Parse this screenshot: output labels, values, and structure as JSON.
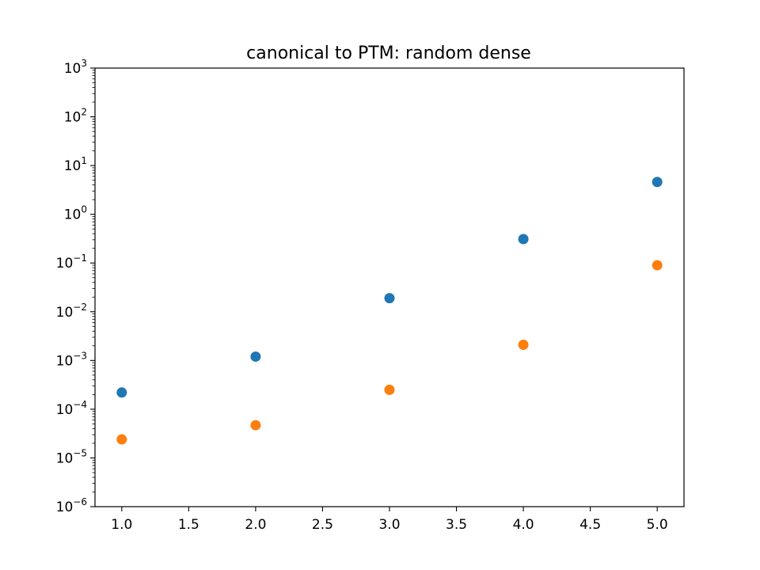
{
  "chart_data": {
    "type": "scatter",
    "title": "canonical to PTM: random dense",
    "xlabel": "",
    "ylabel": "",
    "xlim": [
      0.8,
      5.2
    ],
    "ylim": [
      1e-06,
      1000
    ],
    "yscale": "log",
    "grid": false,
    "x_ticks": [
      1.0,
      1.5,
      2.0,
      2.5,
      3.0,
      3.5,
      4.0,
      4.5,
      5.0
    ],
    "x_tick_labels": [
      "1.0",
      "1.5",
      "2.0",
      "2.5",
      "3.0",
      "3.5",
      "4.0",
      "4.5",
      "5.0"
    ],
    "y_ticks": [
      {
        "value": 1e-06,
        "base": "10",
        "exp": "−6"
      },
      {
        "value": 1e-05,
        "base": "10",
        "exp": "−5"
      },
      {
        "value": 0.0001,
        "base": "10",
        "exp": "−4"
      },
      {
        "value": 0.001,
        "base": "10",
        "exp": "−3"
      },
      {
        "value": 0.01,
        "base": "10",
        "exp": "−2"
      },
      {
        "value": 0.1,
        "base": "10",
        "exp": "−1"
      },
      {
        "value": 1,
        "base": "10",
        "exp": "0"
      },
      {
        "value": 10,
        "base": "10",
        "exp": "1"
      },
      {
        "value": 100,
        "base": "10",
        "exp": "2"
      },
      {
        "value": 1000,
        "base": "10",
        "exp": "3"
      }
    ],
    "series": [
      {
        "color": "#1f77b4",
        "x": [
          1,
          2,
          3,
          4,
          5
        ],
        "y": [
          0.00022,
          0.0012,
          0.019,
          0.31,
          4.6
        ]
      },
      {
        "color": "#ff7f0e",
        "x": [
          1,
          2,
          3,
          4,
          5
        ],
        "y": [
          2.4e-05,
          4.7e-05,
          0.00025,
          0.0021,
          0.09
        ]
      }
    ]
  }
}
